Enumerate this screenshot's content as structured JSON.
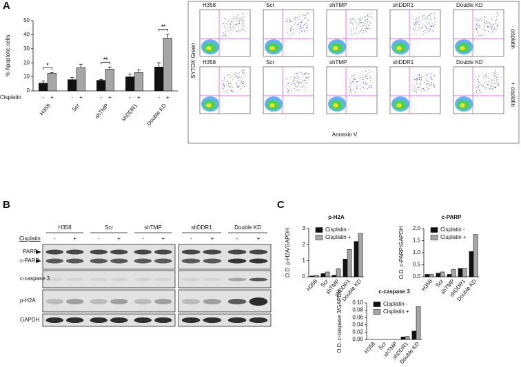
{
  "panel_labels": [
    "A",
    "B",
    "C"
  ],
  "chart_data": [
    {
      "type": "bar",
      "ylabel": "% Apoptotic cells",
      "x_row_label": "Cisplatin",
      "categories": [
        "H358",
        "Scr",
        "shTMP",
        "shDDR1",
        "Double KD"
      ],
      "series": [
        {
          "name": "-",
          "color": "#111111",
          "values": [
            5.5,
            8,
            7.5,
            10,
            17
          ],
          "errors": [
            1.5,
            1.5,
            0.5,
            2,
            3
          ]
        },
        {
          "name": "+",
          "color": "#a6a6a6",
          "values": [
            12.5,
            16.5,
            15.5,
            13,
            37.5
          ],
          "errors": [
            0.5,
            2.5,
            1.5,
            2,
            3
          ]
        }
      ],
      "ylim": [
        0,
        50
      ],
      "yticks": [
        0,
        10,
        20,
        30,
        40,
        50
      ],
      "annotations": [
        {
          "text": "*",
          "category": "H358"
        },
        {
          "text": "**",
          "category": "shTMP"
        },
        {
          "text": "**",
          "category": "Double KD"
        }
      ]
    },
    {
      "type": "bar",
      "title": "p-H2A",
      "ylabel": "O.D. p-H2A/GAPDH",
      "legend": "upper left",
      "categories": [
        "H358",
        "Scr",
        "shTMP",
        "shDDR1",
        "Double KD"
      ],
      "series": [
        {
          "name": "Cisplatin -",
          "color": "#111111",
          "values": [
            0.05,
            0.2,
            0.1,
            1.1,
            2.2
          ]
        },
        {
          "name": "Cisplatin +",
          "color": "#a6a6a6",
          "values": [
            0.1,
            0.3,
            0.5,
            1.7,
            2.7
          ]
        }
      ],
      "ylim": [
        0,
        3
      ],
      "yticks": [
        0,
        1,
        2,
        3
      ]
    },
    {
      "type": "bar",
      "title": "c-PARP",
      "ylabel": "O.D. c-PARP/GAPDH",
      "legend": "upper left",
      "categories": [
        "H358",
        "Scr",
        "shTMP",
        "shDDR1",
        "Double KD"
      ],
      "series": [
        {
          "name": "Cisplatin -",
          "color": "#111111",
          "values": [
            0.1,
            0.15,
            0.1,
            0.35,
            1.05
          ]
        },
        {
          "name": "Cisplatin +",
          "color": "#a6a6a6",
          "values": [
            0.1,
            0.2,
            0.3,
            0.35,
            1.75
          ]
        }
      ],
      "ylim": [
        0,
        2
      ],
      "yticks": [
        {
          "value": 0,
          "label": "0.0"
        },
        0.5,
        {
          "value": 1,
          "label": "1.0"
        },
        1.5,
        {
          "value": 2,
          "label": "2.0"
        }
      ]
    },
    {
      "type": "bar",
      "title": "c-caspase 3",
      "ylabel": "O.D. c-caspase 3/GAPDH",
      "legend": "upper left",
      "categories": [
        "H358",
        "Scr",
        "shTMP",
        "shDDR1",
        "Double KD"
      ],
      "series": [
        {
          "name": "Cisplatin -",
          "color": "#111111",
          "values": [
            0,
            0,
            0,
            0.007,
            0.023
          ]
        },
        {
          "name": "Cisplatin +",
          "color": "#a6a6a6",
          "values": [
            0,
            0,
            0,
            0.008,
            0.09
          ]
        }
      ],
      "ylim": [
        0,
        0.1
      ],
      "yticks": [
        {
          "value": 0,
          "label": "0.00"
        },
        {
          "value": 0.02,
          "label": "0.02"
        },
        {
          "value": 0.04,
          "label": "0.04"
        },
        {
          "value": 0.06,
          "label": "0.06"
        },
        {
          "value": 0.08,
          "label": "0.08"
        },
        {
          "value": 0.1,
          "label": "0.10"
        }
      ]
    }
  ],
  "flow": {
    "columns": [
      "H358",
      "Scr",
      "shTMP",
      "shDDR1",
      "Double KD"
    ],
    "rows": [
      "- cisplatin",
      "+ cisplatin"
    ],
    "ylabel": "SYTOX Green",
    "xlabel": "Annexin V"
  },
  "blot": {
    "groups": [
      "H358",
      "Scr",
      "shTMP",
      "shDDR1",
      "Double KD"
    ],
    "treatment": "Cisplatin",
    "lanes": [
      "-",
      "+"
    ],
    "rows": [
      "PARP",
      "c-PARP",
      "c-caspase 3",
      "p-H2A",
      "GAPDH"
    ]
  }
}
